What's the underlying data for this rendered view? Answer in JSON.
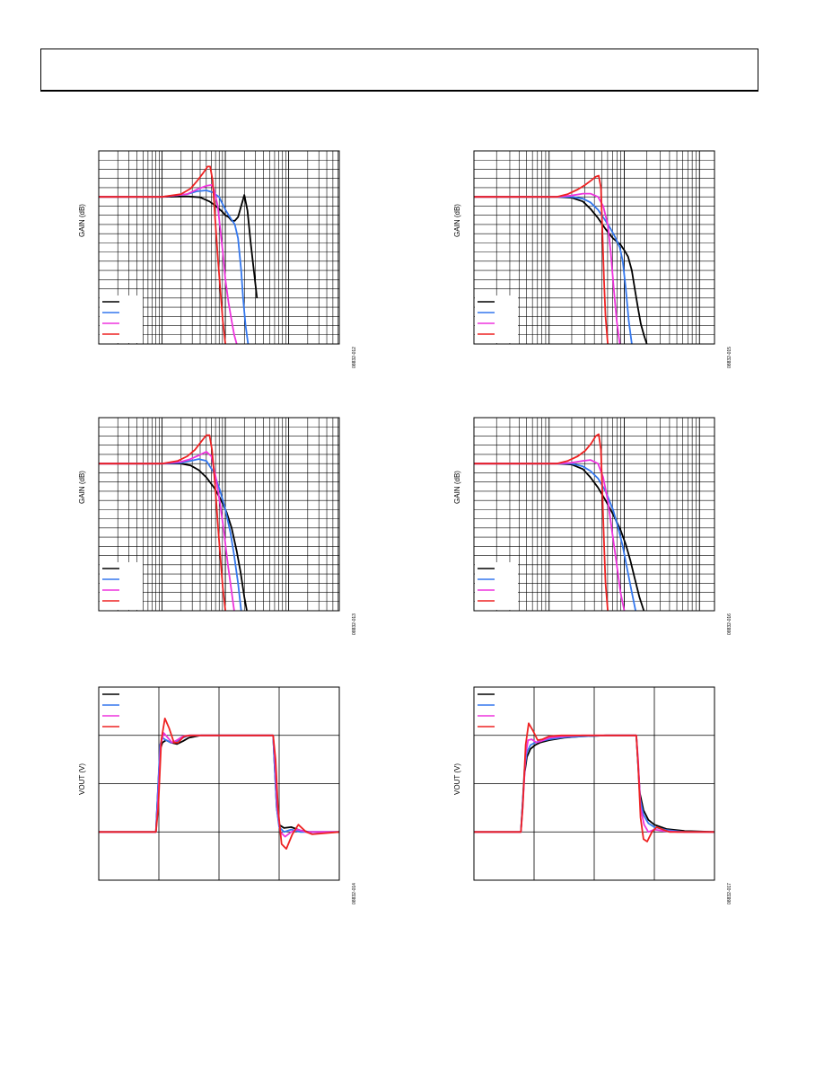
{
  "page": {
    "header_text": ""
  },
  "colors": {
    "black": "#000000",
    "blue": "#3377ee",
    "magenta": "#ee33dd",
    "red": "#ee2222",
    "grid": "#000000"
  },
  "chart_data": [
    {
      "id": "freq-response-1",
      "type": "line",
      "xscale": "log",
      "grid": true,
      "ylabel": "GAIN (dB)",
      "fig_id": "08832-012",
      "legend_placement": "bottom-left",
      "x_decades": 3.8,
      "ylim": [
        -16,
        5
      ],
      "series": [
        {
          "color": "black",
          "x": [
            0.0,
            1.0,
            1.4,
            1.6,
            1.75,
            1.85,
            1.95,
            2.0,
            2.05,
            2.1,
            2.15,
            2.2,
            2.25,
            2.3,
            2.35,
            2.4,
            2.5
          ],
          "y": [
            0.0,
            0.0,
            0.05,
            -0.05,
            -0.5,
            -1.0,
            -1.6,
            -2.0,
            -2.2,
            -2.6,
            -2.6,
            -2.2,
            -1.0,
            0.2,
            -1.5,
            -5.0,
            -11.0
          ]
        },
        {
          "color": "blue",
          "x": [
            0.0,
            1.0,
            1.4,
            1.55,
            1.7,
            1.8,
            1.9,
            2.0,
            2.1,
            2.15,
            2.2,
            2.25,
            2.28,
            2.32,
            2.36
          ],
          "y": [
            0.0,
            0.0,
            0.3,
            0.6,
            0.7,
            0.5,
            0.0,
            -1.4,
            -2.5,
            -3.0,
            -4.5,
            -8.0,
            -11.0,
            -14.0,
            -16.0
          ]
        },
        {
          "color": "magenta",
          "x": [
            0.0,
            1.0,
            1.4,
            1.55,
            1.7,
            1.78,
            1.82,
            1.88,
            1.92,
            1.96,
            2.0,
            2.05,
            2.1,
            2.14,
            2.18
          ],
          "y": [
            0.0,
            0.0,
            0.3,
            0.8,
            1.2,
            1.3,
            0.8,
            -1.0,
            -3.5,
            -6.0,
            -9.0,
            -11.5,
            -13.5,
            -15.0,
            -16.0
          ]
        },
        {
          "color": "red",
          "x": [
            0.0,
            1.0,
            1.3,
            1.45,
            1.55,
            1.65,
            1.72,
            1.76,
            1.8,
            1.84,
            1.88,
            1.92,
            1.96,
            2.0
          ],
          "y": [
            0.0,
            0.0,
            0.3,
            0.9,
            1.7,
            2.6,
            3.3,
            3.3,
            1.8,
            -2.5,
            -6.5,
            -10.0,
            -13.5,
            -16.0
          ]
        }
      ]
    },
    {
      "id": "freq-response-2",
      "type": "line",
      "xscale": "log",
      "grid": true,
      "ylabel": "GAIN (dB)",
      "fig_id": "08832-015",
      "legend_placement": "bottom-left",
      "x_decades": 3.2,
      "ylim": [
        -16,
        5
      ],
      "series": [
        {
          "color": "black",
          "x": [
            0.0,
            1.1,
            1.3,
            1.45,
            1.55,
            1.65,
            1.75,
            1.85,
            1.95,
            2.0,
            2.05,
            2.1,
            2.14,
            2.18,
            2.22,
            2.26,
            2.3
          ],
          "y": [
            0.0,
            0.0,
            -0.1,
            -0.5,
            -1.3,
            -2.3,
            -3.5,
            -4.5,
            -5.2,
            -5.8,
            -6.5,
            -8.0,
            -10.0,
            -12.0,
            -13.8,
            -15.0,
            -16.0
          ]
        },
        {
          "color": "blue",
          "x": [
            0.0,
            1.1,
            1.3,
            1.45,
            1.55,
            1.65,
            1.75,
            1.82,
            1.88,
            1.94,
            1.98,
            2.02,
            2.06,
            2.1
          ],
          "y": [
            0.0,
            0.0,
            0.0,
            -0.2,
            -0.6,
            -1.4,
            -2.6,
            -3.5,
            -4.4,
            -5.5,
            -7.0,
            -10.0,
            -13.5,
            -16.0
          ]
        },
        {
          "color": "magenta",
          "x": [
            0.0,
            1.1,
            1.3,
            1.45,
            1.55,
            1.65,
            1.72,
            1.78,
            1.82,
            1.86,
            1.9,
            1.94
          ],
          "y": [
            0.0,
            0.0,
            0.15,
            0.35,
            0.35,
            0.0,
            -1.0,
            -3.0,
            -6.0,
            -10.0,
            -13.5,
            -16.0
          ]
        },
        {
          "color": "red",
          "x": [
            0.0,
            1.1,
            1.25,
            1.38,
            1.48,
            1.56,
            1.62,
            1.66,
            1.69,
            1.71,
            1.73,
            1.75,
            1.78
          ],
          "y": [
            0.0,
            0.0,
            0.3,
            0.8,
            1.3,
            1.8,
            2.2,
            2.3,
            1.0,
            -4.0,
            -9.0,
            -13.0,
            -16.0
          ]
        }
      ]
    },
    {
      "id": "freq-response-3",
      "type": "line",
      "xscale": "log",
      "grid": true,
      "ylabel": "GAIN (dB)",
      "fig_id": "08832-013",
      "legend_placement": "bottom-left",
      "x_decades": 3.8,
      "ylim": [
        -16,
        5
      ],
      "series": [
        {
          "color": "black",
          "x": [
            0.0,
            1.0,
            1.3,
            1.45,
            1.58,
            1.7,
            1.82,
            1.92,
            2.02,
            2.1,
            2.18,
            2.24,
            2.3,
            2.34
          ],
          "y": [
            0.0,
            0.0,
            0.0,
            -0.2,
            -0.7,
            -1.5,
            -2.6,
            -3.8,
            -5.3,
            -7.0,
            -9.5,
            -11.8,
            -14.5,
            -16.0
          ]
        },
        {
          "color": "blue",
          "x": [
            0.0,
            1.0,
            1.3,
            1.45,
            1.58,
            1.7,
            1.82,
            1.92,
            2.0,
            2.08,
            2.14,
            2.2,
            2.25
          ],
          "y": [
            0.0,
            0.0,
            0.1,
            0.3,
            0.5,
            0.3,
            -1.0,
            -3.0,
            -5.0,
            -7.5,
            -10.0,
            -13.0,
            -16.0
          ]
        },
        {
          "color": "magenta",
          "x": [
            0.0,
            1.0,
            1.3,
            1.45,
            1.58,
            1.7,
            1.78,
            1.85,
            1.92,
            1.98,
            2.04,
            2.1,
            2.14
          ],
          "y": [
            0.0,
            0.0,
            0.2,
            0.5,
            0.9,
            1.3,
            0.8,
            -1.5,
            -4.5,
            -7.5,
            -11.0,
            -14.0,
            -16.0
          ]
        },
        {
          "color": "red",
          "x": [
            0.0,
            1.0,
            1.25,
            1.4,
            1.52,
            1.62,
            1.7,
            1.75,
            1.79,
            1.84,
            1.88,
            1.92,
            1.96,
            2.0
          ],
          "y": [
            0.0,
            0.0,
            0.3,
            0.8,
            1.5,
            2.4,
            3.1,
            3.1,
            1.5,
            -2.5,
            -6.5,
            -10.0,
            -13.5,
            -16.0
          ]
        }
      ]
    },
    {
      "id": "freq-response-4",
      "type": "line",
      "xscale": "log",
      "grid": true,
      "ylabel": "GAIN (dB)",
      "fig_id": "08832-016",
      "legend_placement": "bottom-left",
      "x_decades": 3.2,
      "ylim": [
        -16,
        5
      ],
      "series": [
        {
          "color": "black",
          "x": [
            0.0,
            1.1,
            1.3,
            1.45,
            1.55,
            1.65,
            1.75,
            1.85,
            1.95,
            2.02,
            2.08,
            2.14,
            2.2,
            2.26
          ],
          "y": [
            0.0,
            0.0,
            -0.1,
            -0.6,
            -1.5,
            -2.6,
            -4.0,
            -5.5,
            -7.2,
            -8.8,
            -10.5,
            -12.5,
            -14.5,
            -16.0
          ]
        },
        {
          "color": "blue",
          "x": [
            0.0,
            1.1,
            1.3,
            1.45,
            1.55,
            1.65,
            1.75,
            1.85,
            1.92,
            1.98,
            2.04,
            2.1,
            2.15
          ],
          "y": [
            0.0,
            0.0,
            0.0,
            -0.3,
            -0.8,
            -1.6,
            -3.0,
            -5.0,
            -7.0,
            -9.0,
            -11.5,
            -14.0,
            -16.0
          ]
        },
        {
          "color": "magenta",
          "x": [
            0.0,
            1.1,
            1.3,
            1.45,
            1.55,
            1.65,
            1.72,
            1.78,
            1.84,
            1.9,
            1.95,
            2.0
          ],
          "y": [
            0.0,
            0.0,
            0.1,
            0.3,
            0.4,
            0.0,
            -1.5,
            -4.0,
            -7.5,
            -11.0,
            -14.0,
            -16.0
          ]
        },
        {
          "color": "red",
          "x": [
            0.0,
            1.1,
            1.25,
            1.38,
            1.48,
            1.56,
            1.62,
            1.66,
            1.69,
            1.71,
            1.73,
            1.75,
            1.78
          ],
          "y": [
            0.0,
            0.0,
            0.3,
            0.8,
            1.4,
            2.2,
            3.0,
            3.2,
            1.5,
            -3.5,
            -8.5,
            -13.0,
            -16.0
          ]
        }
      ]
    },
    {
      "id": "pulse-response-1",
      "type": "line",
      "grid": true,
      "ylabel": "VOUT (V)",
      "fig_id": "08832-014",
      "legend_placement": "top-left",
      "xlim": [
        0,
        4
      ],
      "ylim": [
        -1,
        3
      ],
      "series": [
        {
          "color": "black",
          "x": [
            0.0,
            0.95,
            0.97,
            1.02,
            1.06,
            1.12,
            1.2,
            1.3,
            1.4,
            1.5,
            1.7,
            2.0,
            2.9,
            2.92,
            2.96,
            3.0,
            3.08,
            3.2,
            3.35,
            3.5,
            4.0
          ],
          "y": [
            0.0,
            0.0,
            0.5,
            1.7,
            1.85,
            1.9,
            1.85,
            1.82,
            1.88,
            1.95,
            2.0,
            2.0,
            2.0,
            1.5,
            0.5,
            0.15,
            0.08,
            0.1,
            0.03,
            0.0,
            0.0
          ]
        },
        {
          "color": "blue",
          "x": [
            0.0,
            0.95,
            0.97,
            1.02,
            1.06,
            1.12,
            1.2,
            1.3,
            1.4,
            1.5,
            1.7,
            2.0,
            2.9,
            2.92,
            2.96,
            3.0,
            3.08,
            3.2,
            3.35,
            3.5,
            4.0
          ],
          "y": [
            0.0,
            0.0,
            0.5,
            1.8,
            1.95,
            1.9,
            1.85,
            1.88,
            1.95,
            2.0,
            2.0,
            2.0,
            2.0,
            1.5,
            0.5,
            0.1,
            0.0,
            0.05,
            0.0,
            0.0,
            0.0
          ]
        },
        {
          "color": "magenta",
          "x": [
            0.0,
            0.95,
            0.98,
            1.03,
            1.08,
            1.15,
            1.22,
            1.3,
            1.4,
            1.5,
            1.7,
            2.0,
            2.9,
            2.93,
            2.97,
            3.02,
            3.1,
            3.2,
            3.3,
            3.45,
            4.0
          ],
          "y": [
            0.0,
            0.0,
            0.5,
            1.8,
            2.05,
            1.95,
            1.85,
            1.9,
            1.98,
            2.0,
            2.0,
            2.0,
            2.0,
            1.5,
            0.5,
            0.0,
            -0.1,
            0.0,
            0.05,
            0.0,
            0.0
          ]
        },
        {
          "color": "red",
          "x": [
            0.0,
            0.95,
            0.99,
            1.04,
            1.1,
            1.17,
            1.25,
            1.32,
            1.42,
            1.52,
            1.7,
            2.0,
            2.9,
            2.94,
            2.98,
            3.04,
            3.12,
            3.22,
            3.32,
            3.45,
            3.55,
            4.0
          ],
          "y": [
            0.0,
            0.0,
            0.5,
            1.9,
            2.35,
            2.15,
            1.85,
            1.85,
            1.98,
            2.0,
            2.0,
            2.0,
            2.0,
            1.5,
            0.5,
            -0.25,
            -0.35,
            -0.05,
            0.15,
            0.0,
            -0.05,
            0.0
          ]
        }
      ]
    },
    {
      "id": "pulse-response-2",
      "type": "line",
      "grid": true,
      "ylabel": "VOUT (V)",
      "fig_id": "08832-017",
      "legend_placement": "top-left",
      "xlim": [
        0,
        4
      ],
      "ylim": [
        -1,
        3
      ],
      "series": [
        {
          "color": "black",
          "x": [
            0.0,
            0.78,
            0.8,
            0.84,
            0.88,
            0.94,
            1.02,
            1.1,
            1.25,
            1.5,
            1.8,
            2.2,
            2.7,
            2.72,
            2.76,
            2.82,
            2.9,
            3.0,
            3.2,
            3.5,
            4.0
          ],
          "y": [
            0.0,
            0.0,
            0.4,
            1.2,
            1.55,
            1.72,
            1.8,
            1.85,
            1.9,
            1.95,
            1.98,
            2.0,
            2.0,
            1.6,
            0.8,
            0.45,
            0.25,
            0.15,
            0.06,
            0.02,
            0.0
          ]
        },
        {
          "color": "blue",
          "x": [
            0.0,
            0.78,
            0.8,
            0.84,
            0.88,
            0.94,
            1.02,
            1.1,
            1.25,
            1.5,
            1.8,
            2.2,
            2.7,
            2.72,
            2.76,
            2.82,
            2.9,
            3.0,
            3.2,
            3.5,
            4.0
          ],
          "y": [
            0.0,
            0.0,
            0.4,
            1.3,
            1.65,
            1.8,
            1.85,
            1.88,
            1.92,
            1.96,
            1.98,
            2.0,
            2.0,
            1.6,
            0.7,
            0.35,
            0.18,
            0.1,
            0.04,
            0.0,
            0.0
          ]
        },
        {
          "color": "magenta",
          "x": [
            0.0,
            0.78,
            0.81,
            0.86,
            0.9,
            0.96,
            1.04,
            1.12,
            1.25,
            1.5,
            1.8,
            2.2,
            2.7,
            2.73,
            2.77,
            2.83,
            2.9,
            3.0,
            3.15,
            3.4,
            4.0
          ],
          "y": [
            0.0,
            0.0,
            0.5,
            1.6,
            1.9,
            1.92,
            1.85,
            1.88,
            1.95,
            1.98,
            2.0,
            2.0,
            2.0,
            1.5,
            0.5,
            0.15,
            0.0,
            0.05,
            0.02,
            0.0,
            0.0
          ]
        },
        {
          "color": "red",
          "x": [
            0.0,
            0.78,
            0.81,
            0.86,
            0.91,
            0.98,
            1.06,
            1.14,
            1.25,
            1.45,
            1.8,
            2.2,
            2.7,
            2.73,
            2.77,
            2.82,
            2.88,
            2.96,
            3.04,
            3.14,
            3.25,
            3.4,
            4.0
          ],
          "y": [
            0.0,
            0.0,
            0.5,
            1.8,
            2.25,
            2.1,
            1.9,
            1.92,
            1.98,
            2.0,
            2.0,
            2.0,
            2.0,
            1.4,
            0.3,
            -0.15,
            -0.2,
            0.0,
            0.1,
            0.05,
            0.0,
            0.0,
            0.0
          ]
        }
      ]
    }
  ]
}
